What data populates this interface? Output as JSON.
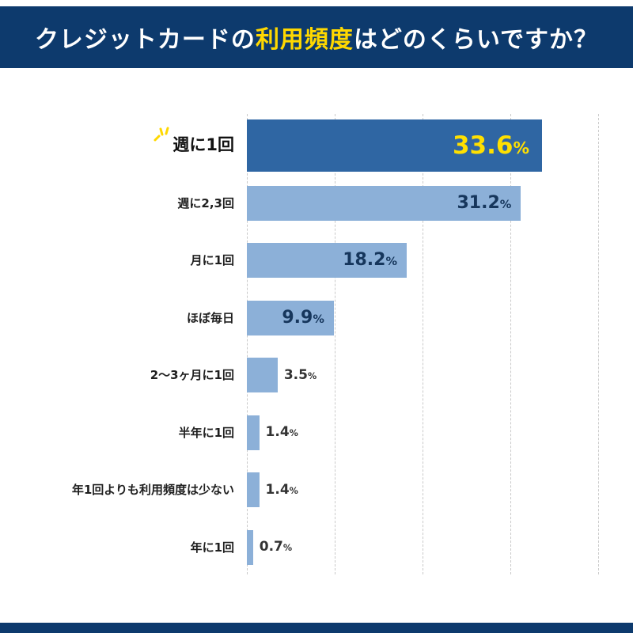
{
  "header": {
    "title_prefix": "クレジットカードの",
    "title_highlight": "利用頻度",
    "title_suffix": "はどのくらいですか？"
  },
  "chart_data": {
    "type": "bar",
    "orientation": "horizontal",
    "title": "クレジットカードの利用頻度はどのくらいですか？",
    "categories": [
      "週に1回",
      "週に2,3回",
      "月に1回",
      "ほぼ毎日",
      "2〜3ヶ月に1回",
      "半年に1回",
      "年1回よりも利用頻度は少ない",
      "年に1回"
    ],
    "values": [
      33.6,
      31.2,
      18.2,
      9.9,
      3.5,
      1.4,
      1.4,
      0.7
    ],
    "value_labels": [
      "33.6%",
      "31.2%",
      "18.2%",
      "9.9%",
      "3.5%",
      "1.4%",
      "1.4%",
      "0.7%"
    ],
    "highlight_index": 0,
    "xlim": [
      0,
      40
    ],
    "tick_step": 10,
    "grid": "vertical-dashed",
    "legend": "none",
    "inside_label_min_value": 9,
    "colors": {
      "banner": "#0d3a6d",
      "highlight_bar": "#2f66a3",
      "bar": "#8cb0d8",
      "highlight_value": "#ffe000",
      "value_inside": "#16365c",
      "value_outside": "#333333",
      "title_highlight": "#ffd800",
      "gridline": "#c9c9c9"
    }
  }
}
